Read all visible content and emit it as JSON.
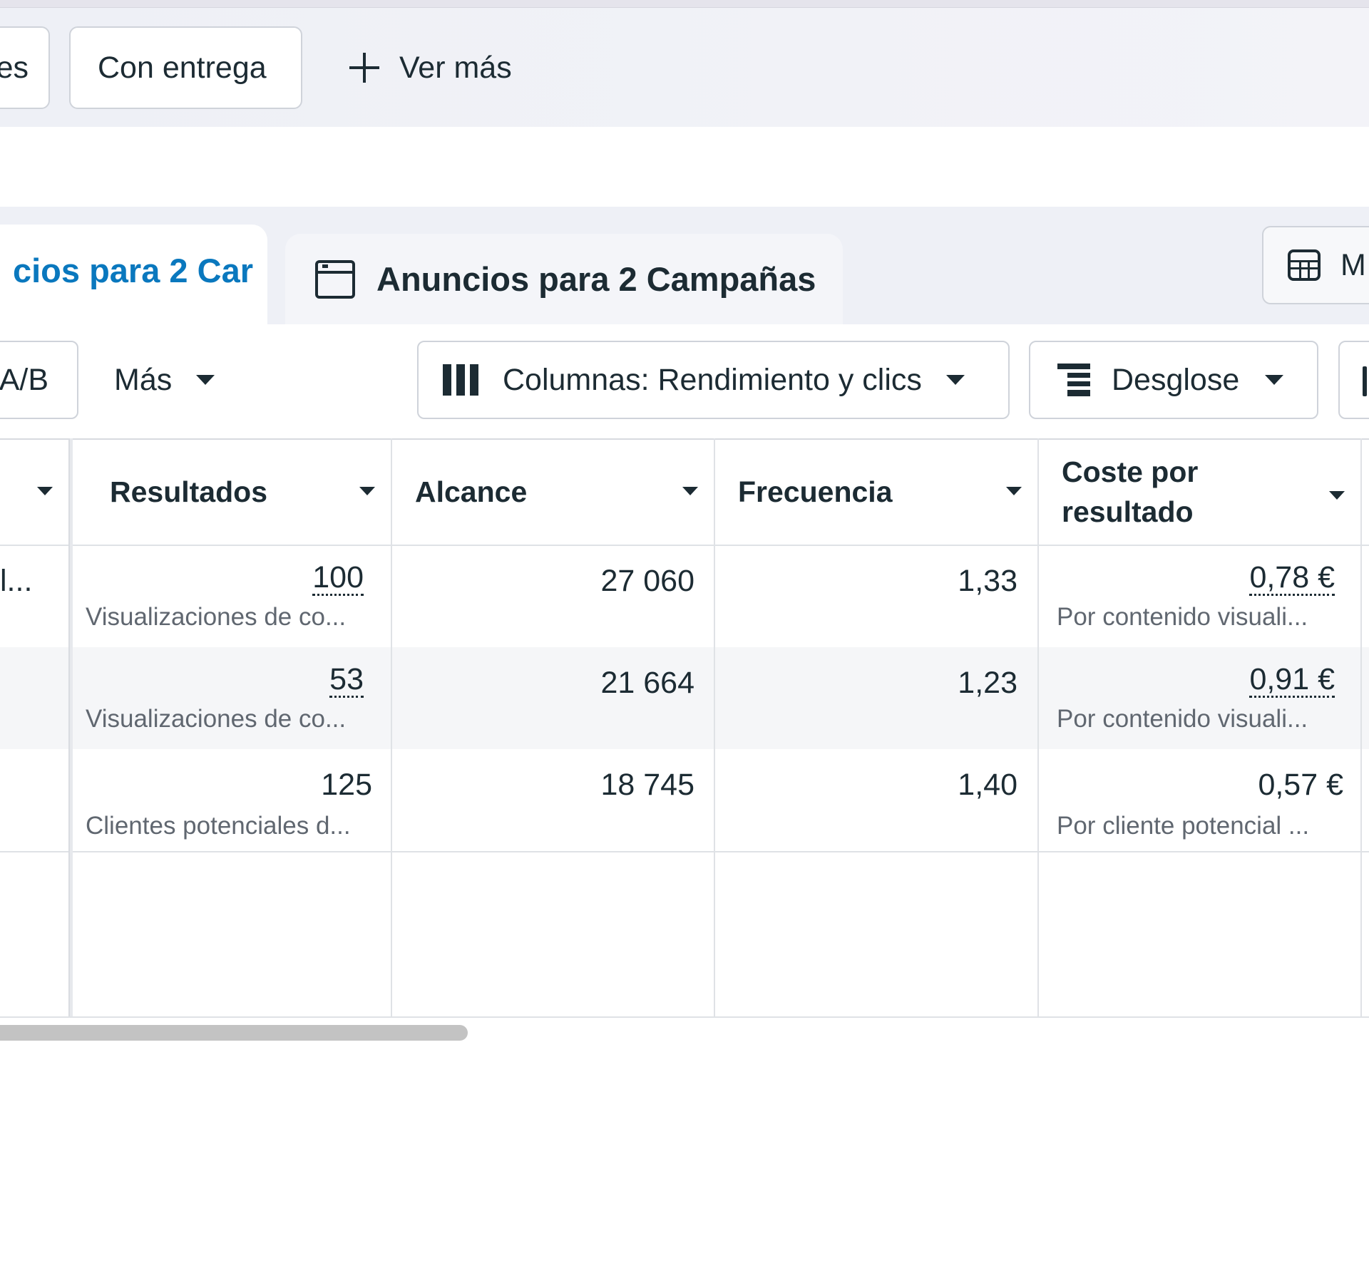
{
  "filters": {
    "partial_chip": "es",
    "delivery_chip": "Con entrega",
    "see_more": "Ver más"
  },
  "tabs": {
    "active_partial": "cios para 2 Car",
    "ads": "Anuncios para 2 Campañas",
    "right_button_partial": "M"
  },
  "toolbar": {
    "ab_partial": "A/B",
    "more": "Más",
    "columns": "Columnas: Rendimiento y clics",
    "breakdown": "Desglose"
  },
  "table": {
    "headers": [
      "Resultados",
      "Alcance",
      "Frecuencia",
      "Coste por resultado"
    ],
    "header_cost_line1": "Coste por",
    "header_cost_line2": "resultado",
    "first_col_partial": "l...",
    "rows": [
      {
        "results": "100",
        "results_sub": "Visualizaciones de co...",
        "reach": "27 060",
        "frequency": "1,33",
        "cost": "0,78 €",
        "cost_sub": "Por contenido visuali..."
      },
      {
        "results": "53",
        "results_sub": "Visualizaciones de co...",
        "reach": "21 664",
        "frequency": "1,23",
        "cost": "0,91 €",
        "cost_sub": "Por contenido visuali..."
      },
      {
        "results": "125",
        "results_sub": "Clientes potenciales d...",
        "reach": "18 745",
        "frequency": "1,40",
        "cost": "0,57 €",
        "cost_sub": "Por cliente potencial ..."
      }
    ]
  },
  "colors": {
    "accent_blue": "#0a78be",
    "text": "#1c2b33",
    "muted": "#606770",
    "strip_bg": "#eef0f6"
  }
}
